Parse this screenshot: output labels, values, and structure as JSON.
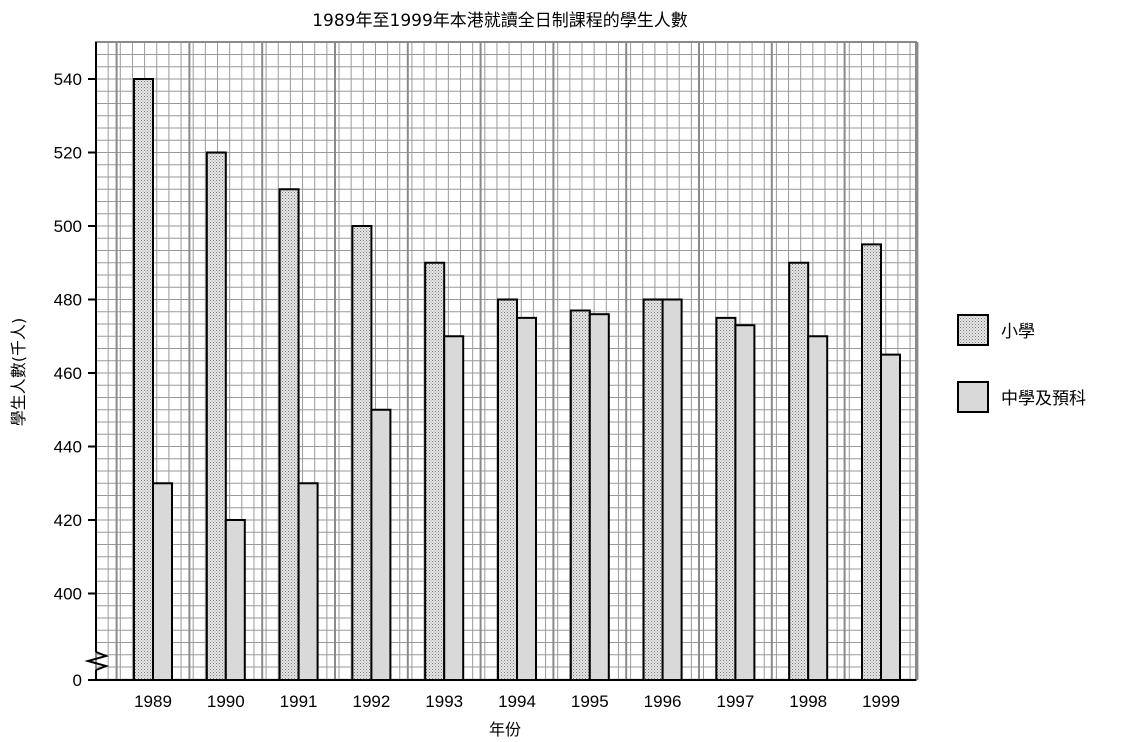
{
  "chart_data": {
    "type": "bar",
    "title": "1989年至1999年本港就讀全日制課程的學生人數",
    "xlabel": "年份",
    "ylabel": "學生人數(千人)",
    "categories": [
      "1989",
      "1990",
      "1991",
      "1992",
      "1993",
      "1994",
      "1995",
      "1996",
      "1997",
      "1998",
      "1999"
    ],
    "series": [
      {
        "name": "小學",
        "values": [
          540,
          520,
          510,
          500,
          490,
          480,
          477,
          480,
          475,
          490,
          495
        ]
      },
      {
        "name": "中學及預科",
        "values": [
          430,
          420,
          430,
          450,
          470,
          475,
          476,
          480,
          473,
          470,
          465
        ]
      }
    ],
    "yticks": [
      0,
      400,
      420,
      440,
      460,
      480,
      500,
      520,
      540
    ],
    "ylim": [
      385,
      550
    ],
    "axis_break": true,
    "grid": true,
    "legend": "right",
    "colors": {
      "grid": "#9a9a9a",
      "primary_fill": "#e6e6e6",
      "primary_dots": "#7a7a7a",
      "secondary_fill": "#d9d9d9",
      "bar_stroke": "#000000"
    }
  }
}
